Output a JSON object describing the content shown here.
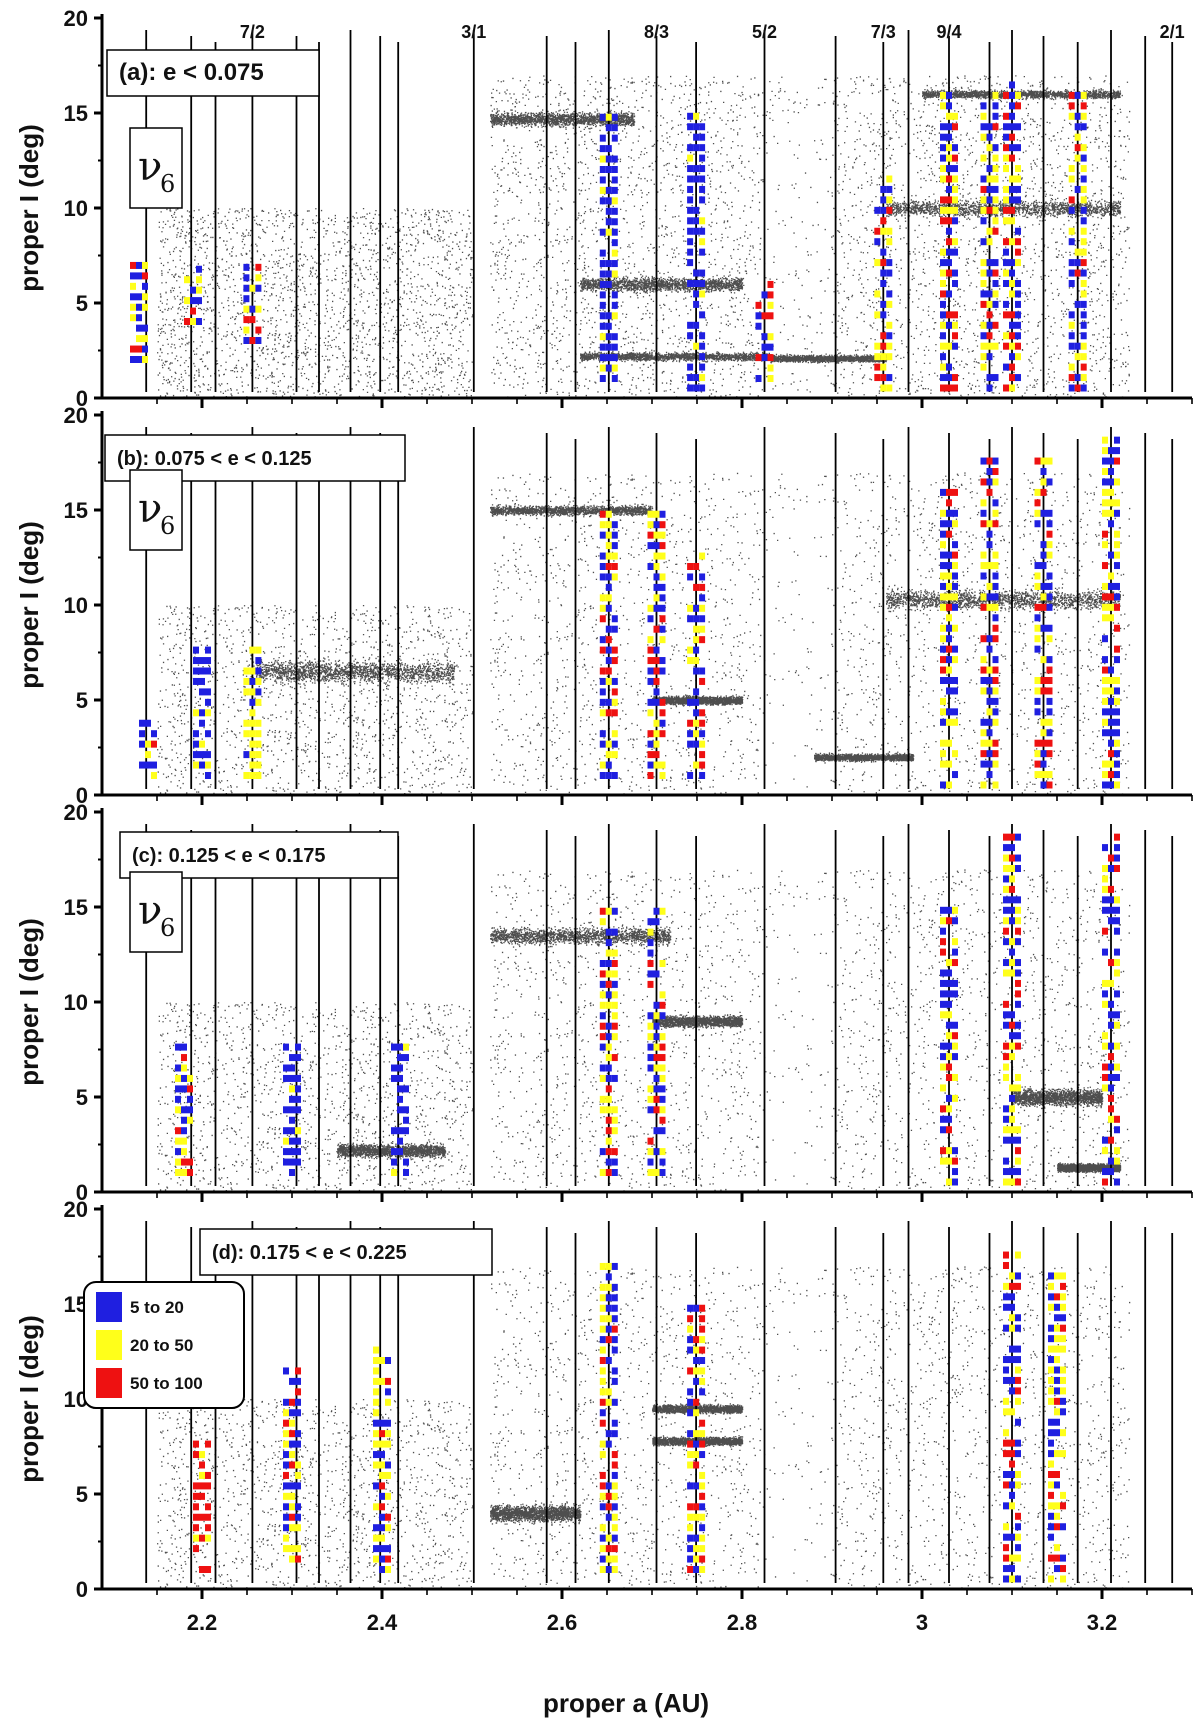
{
  "chart_data": {
    "type": "scatter",
    "xlabel": "proper a (AU)",
    "ylabel": "proper I (deg)",
    "xlim": [
      2.1,
      3.3
    ],
    "ylim": [
      0,
      20
    ],
    "x_ticks": [
      "2.2",
      "2.4",
      "2.6",
      "2.8",
      "3",
      "3.2"
    ],
    "y_ticks": [
      "0",
      "5",
      "10",
      "15",
      "20"
    ],
    "resonance_labels": [
      {
        "label": "7/2",
        "a": 2.256
      },
      {
        "label": "3/1",
        "a": 2.502
      },
      {
        "label": "8/3",
        "a": 2.705
      },
      {
        "label": "5/2",
        "a": 2.825
      },
      {
        "label": "7/3",
        "a": 2.957
      },
      {
        "label": "9/4",
        "a": 3.03
      },
      {
        "label": "2/1",
        "a": 3.278
      }
    ],
    "resonance_lines_a": [
      2.138,
      2.188,
      2.215,
      2.256,
      2.305,
      2.33,
      2.365,
      2.398,
      2.418,
      2.502,
      2.583,
      2.615,
      2.652,
      2.705,
      2.749,
      2.825,
      2.904,
      2.957,
      2.985,
      3.03,
      3.075,
      3.1,
      3.135,
      3.173,
      3.21,
      3.248,
      3.278
    ],
    "secular_label": "ν",
    "secular_subscript": "6",
    "legend": {
      "title": "",
      "entries": [
        {
          "label": "5 to 20",
          "color": "#1f1fe0"
        },
        {
          "label": "20 to 50",
          "color": "#ffff1a"
        },
        {
          "label": "50 to 100",
          "color": "#ee1111"
        }
      ]
    },
    "panels": [
      {
        "id": "a",
        "label": "(a): e < 0.075",
        "families": [
          {
            "a": [
              2.52,
              2.68
            ],
            "i": 14.7,
            "w": 0.5
          },
          {
            "a": [
              2.62,
              2.8
            ],
            "i": 6.0,
            "w": 0.5
          },
          {
            "a": [
              2.62,
              2.83
            ],
            "i": 2.2,
            "w": 0.3
          },
          {
            "a": [
              2.83,
              2.96
            ],
            "i": 2.1,
            "w": 0.25
          },
          {
            "a": [
              2.96,
              3.22
            ],
            "i": 10.0,
            "w": 0.6
          },
          {
            "a": [
              3.0,
              3.22
            ],
            "i": 16.0,
            "w": 0.3
          }
        ],
        "box_columns": [
          {
            "a": 2.13,
            "i": [
              2,
              7
            ],
            "c": "mixed"
          },
          {
            "a": 2.19,
            "i": [
              4,
              7
            ],
            "c": "mixed"
          },
          {
            "a": 2.256,
            "i": [
              3,
              7
            ],
            "c": "mixed"
          },
          {
            "a": 2.652,
            "i": [
              1,
              15
            ],
            "c": "blue"
          },
          {
            "a": 2.749,
            "i": [
              0.5,
              15
            ],
            "c": "blue"
          },
          {
            "a": 2.825,
            "i": [
              1,
              6
            ],
            "c": "mixed"
          },
          {
            "a": 2.957,
            "i": [
              0.5,
              12
            ],
            "c": "mixed"
          },
          {
            "a": 3.03,
            "i": [
              0.5,
              16
            ],
            "c": "mixed"
          },
          {
            "a": 3.075,
            "i": [
              0.5,
              16
            ],
            "c": "mixed"
          },
          {
            "a": 3.1,
            "i": [
              0.5,
              17
            ],
            "c": "mixed"
          },
          {
            "a": 3.173,
            "i": [
              0.5,
              16
            ],
            "c": "mixed"
          }
        ]
      },
      {
        "id": "b",
        "label": "(b): 0.075  < e < 0.125",
        "families": [
          {
            "a": [
              2.26,
              2.48
            ],
            "i": 6.5,
            "w": 0.8
          },
          {
            "a": [
              2.52,
              2.7
            ],
            "i": 15.0,
            "w": 0.35
          },
          {
            "a": [
              2.7,
              2.8
            ],
            "i": 5.0,
            "w": 0.3
          },
          {
            "a": [
              2.96,
              3.22
            ],
            "i": 10.3,
            "w": 0.7
          },
          {
            "a": [
              2.88,
              2.99
            ],
            "i": 2.0,
            "w": 0.25
          }
        ],
        "box_columns": [
          {
            "a": 2.14,
            "i": [
              1,
              4
            ],
            "c": "mixed"
          },
          {
            "a": 2.2,
            "i": [
              1,
              8
            ],
            "c": "blue"
          },
          {
            "a": 2.256,
            "i": [
              1,
              8
            ],
            "c": "yellow"
          },
          {
            "a": 2.652,
            "i": [
              1,
              15
            ],
            "c": "mixed"
          },
          {
            "a": 2.705,
            "i": [
              1,
              15
            ],
            "c": "mixed"
          },
          {
            "a": 2.749,
            "i": [
              1,
              13
            ],
            "c": "mixed"
          },
          {
            "a": 3.03,
            "i": [
              0.5,
              16
            ],
            "c": "mixed"
          },
          {
            "a": 3.075,
            "i": [
              0.5,
              18
            ],
            "c": "mixed"
          },
          {
            "a": 3.135,
            "i": [
              0.5,
              18
            ],
            "c": "mixed"
          },
          {
            "a": 3.21,
            "i": [
              0.5,
              19
            ],
            "c": "mixed"
          }
        ]
      },
      {
        "id": "c",
        "label": "(c): 0.125 < e < 0.175",
        "families": [
          {
            "a": [
              2.52,
              2.72
            ],
            "i": 13.5,
            "w": 0.6
          },
          {
            "a": [
              2.7,
              2.8
            ],
            "i": 9.0,
            "w": 0.4
          },
          {
            "a": [
              2.35,
              2.47
            ],
            "i": 2.2,
            "w": 0.5
          },
          {
            "a": [
              3.1,
              3.2
            ],
            "i": 5.0,
            "w": 0.6
          },
          {
            "a": [
              3.15,
              3.22
            ],
            "i": 1.3,
            "w": 0.3
          }
        ],
        "box_columns": [
          {
            "a": 2.18,
            "i": [
              1,
              8
            ],
            "c": "mixed"
          },
          {
            "a": 2.3,
            "i": [
              1,
              8
            ],
            "c": "blue"
          },
          {
            "a": 2.42,
            "i": [
              1,
              8
            ],
            "c": "blue"
          },
          {
            "a": 2.652,
            "i": [
              1,
              15
            ],
            "c": "mixed"
          },
          {
            "a": 2.705,
            "i": [
              1,
              15
            ],
            "c": "mixed"
          },
          {
            "a": 3.03,
            "i": [
              0.5,
              15
            ],
            "c": "mixed"
          },
          {
            "a": 3.1,
            "i": [
              0.5,
              19
            ],
            "c": "mixed"
          },
          {
            "a": 3.21,
            "i": [
              0.5,
              19
            ],
            "c": "mixed"
          }
        ]
      },
      {
        "id": "d",
        "label": "(d): 0.175 < e < 0.225",
        "families": [
          {
            "a": [
              2.52,
              2.62
            ],
            "i": 4.0,
            "w": 0.6
          },
          {
            "a": [
              2.7,
              2.8
            ],
            "i": 9.5,
            "w": 0.3
          },
          {
            "a": [
              2.7,
              2.8
            ],
            "i": 7.8,
            "w": 0.3
          }
        ],
        "box_columns": [
          {
            "a": 2.2,
            "i": [
              1,
              8
            ],
            "c": "red"
          },
          {
            "a": 2.3,
            "i": [
              1,
              12
            ],
            "c": "mixed"
          },
          {
            "a": 2.4,
            "i": [
              1,
              13
            ],
            "c": "mixed"
          },
          {
            "a": 2.652,
            "i": [
              1,
              17
            ],
            "c": "mixed"
          },
          {
            "a": 2.749,
            "i": [
              1,
              15
            ],
            "c": "mixed"
          },
          {
            "a": 3.1,
            "i": [
              0.5,
              18
            ],
            "c": "mixed"
          },
          {
            "a": 3.15,
            "i": [
              0.5,
              17
            ],
            "c": "mixed"
          }
        ]
      }
    ]
  }
}
